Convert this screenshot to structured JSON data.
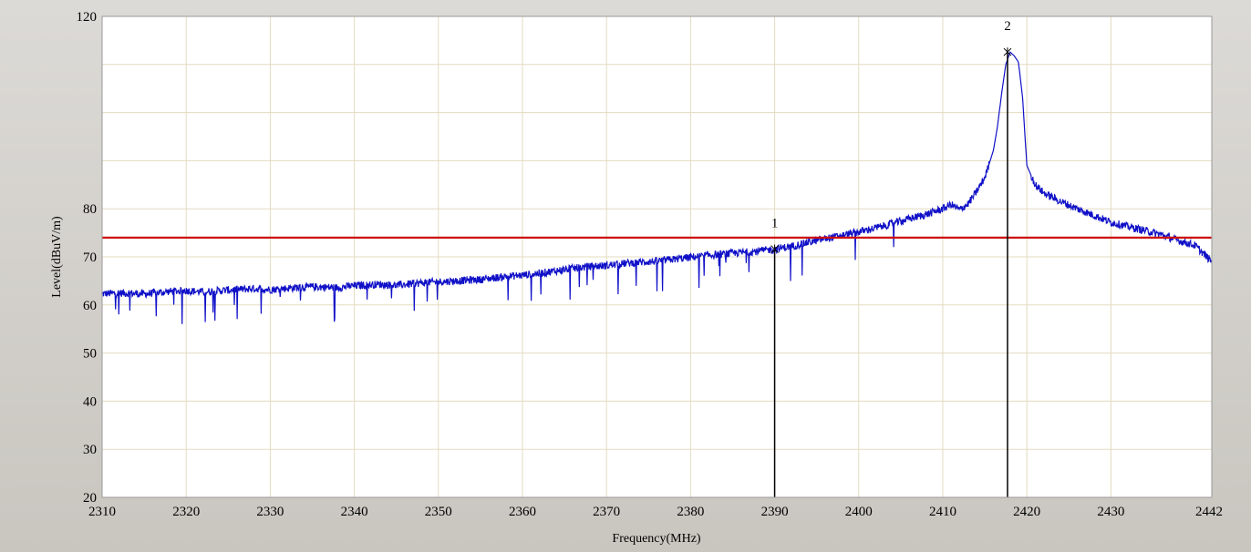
{
  "chart_data": {
    "type": "line",
    "title": "",
    "xlabel": "Frequency(MHz)",
    "ylabel": "Level(dBuV/m)",
    "xlim": [
      2310,
      2442
    ],
    "ylim": [
      20,
      120
    ],
    "x_ticks": [
      2310,
      2320,
      2330,
      2340,
      2350,
      2360,
      2370,
      2380,
      2390,
      2400,
      2410,
      2420,
      2430,
      2442
    ],
    "y_ticks": [
      20,
      30,
      40,
      50,
      60,
      70,
      80,
      120
    ],
    "grid": true,
    "colors": {
      "trace": "#1010c8",
      "limit_line": "#cc1010",
      "marker_line": "#000000",
      "grid": "#e3dcc0",
      "plot_bg": "#ffffff",
      "frame_bg": "#d4d0c8"
    },
    "limit_line": {
      "y": 74
    },
    "markers": [
      {
        "label": "1",
        "x": 2390,
        "y": 71.6
      },
      {
        "label": "2",
        "x": 2417.7,
        "y": 112.6
      }
    ],
    "series": [
      {
        "x": [
          2310,
          2312,
          2315,
          2318,
          2320,
          2322,
          2325,
          2328,
          2330,
          2333,
          2335,
          2338,
          2340,
          2343,
          2345,
          2348,
          2350,
          2353,
          2355,
          2358,
          2360,
          2362,
          2364,
          2366,
          2368,
          2370,
          2372,
          2374,
          2376,
          2378,
          2380,
          2382,
          2384,
          2386,
          2388,
          2390,
          2392,
          2394,
          2396,
          2398,
          2400,
          2402,
          2404,
          2406,
          2408,
          2409,
          2410,
          2411,
          2412,
          2413,
          2414,
          2415,
          2416,
          2416.5,
          2417,
          2417.5,
          2418,
          2418.5,
          2419,
          2419.5,
          2420,
          2421,
          2422,
          2424,
          2426,
          2428,
          2430,
          2432,
          2434,
          2436,
          2438,
          2440,
          2442
        ],
        "y": [
          62.3,
          62.5,
          62.3,
          62.8,
          63.0,
          62.7,
          63.1,
          63.4,
          63.2,
          63.6,
          63.8,
          63.6,
          64.0,
          64.3,
          64.1,
          64.6,
          64.8,
          65.1,
          65.3,
          65.9,
          66.2,
          66.6,
          67.1,
          67.6,
          68.0,
          68.2,
          68.6,
          68.9,
          69.1,
          69.5,
          69.9,
          70.3,
          70.6,
          70.9,
          71.2,
          71.6,
          72.2,
          73.0,
          73.8,
          74.4,
          75.2,
          76.0,
          76.9,
          77.9,
          78.8,
          79.4,
          80.0,
          80.9,
          79.8,
          81.0,
          83.5,
          86.5,
          92.0,
          97.0,
          104.0,
          110.0,
          112.6,
          111.8,
          110.5,
          103.0,
          89.0,
          85.0,
          83.3,
          81.5,
          80.0,
          78.6,
          77.2,
          76.3,
          75.5,
          74.6,
          73.4,
          72.4,
          69.0
        ]
      }
    ]
  }
}
